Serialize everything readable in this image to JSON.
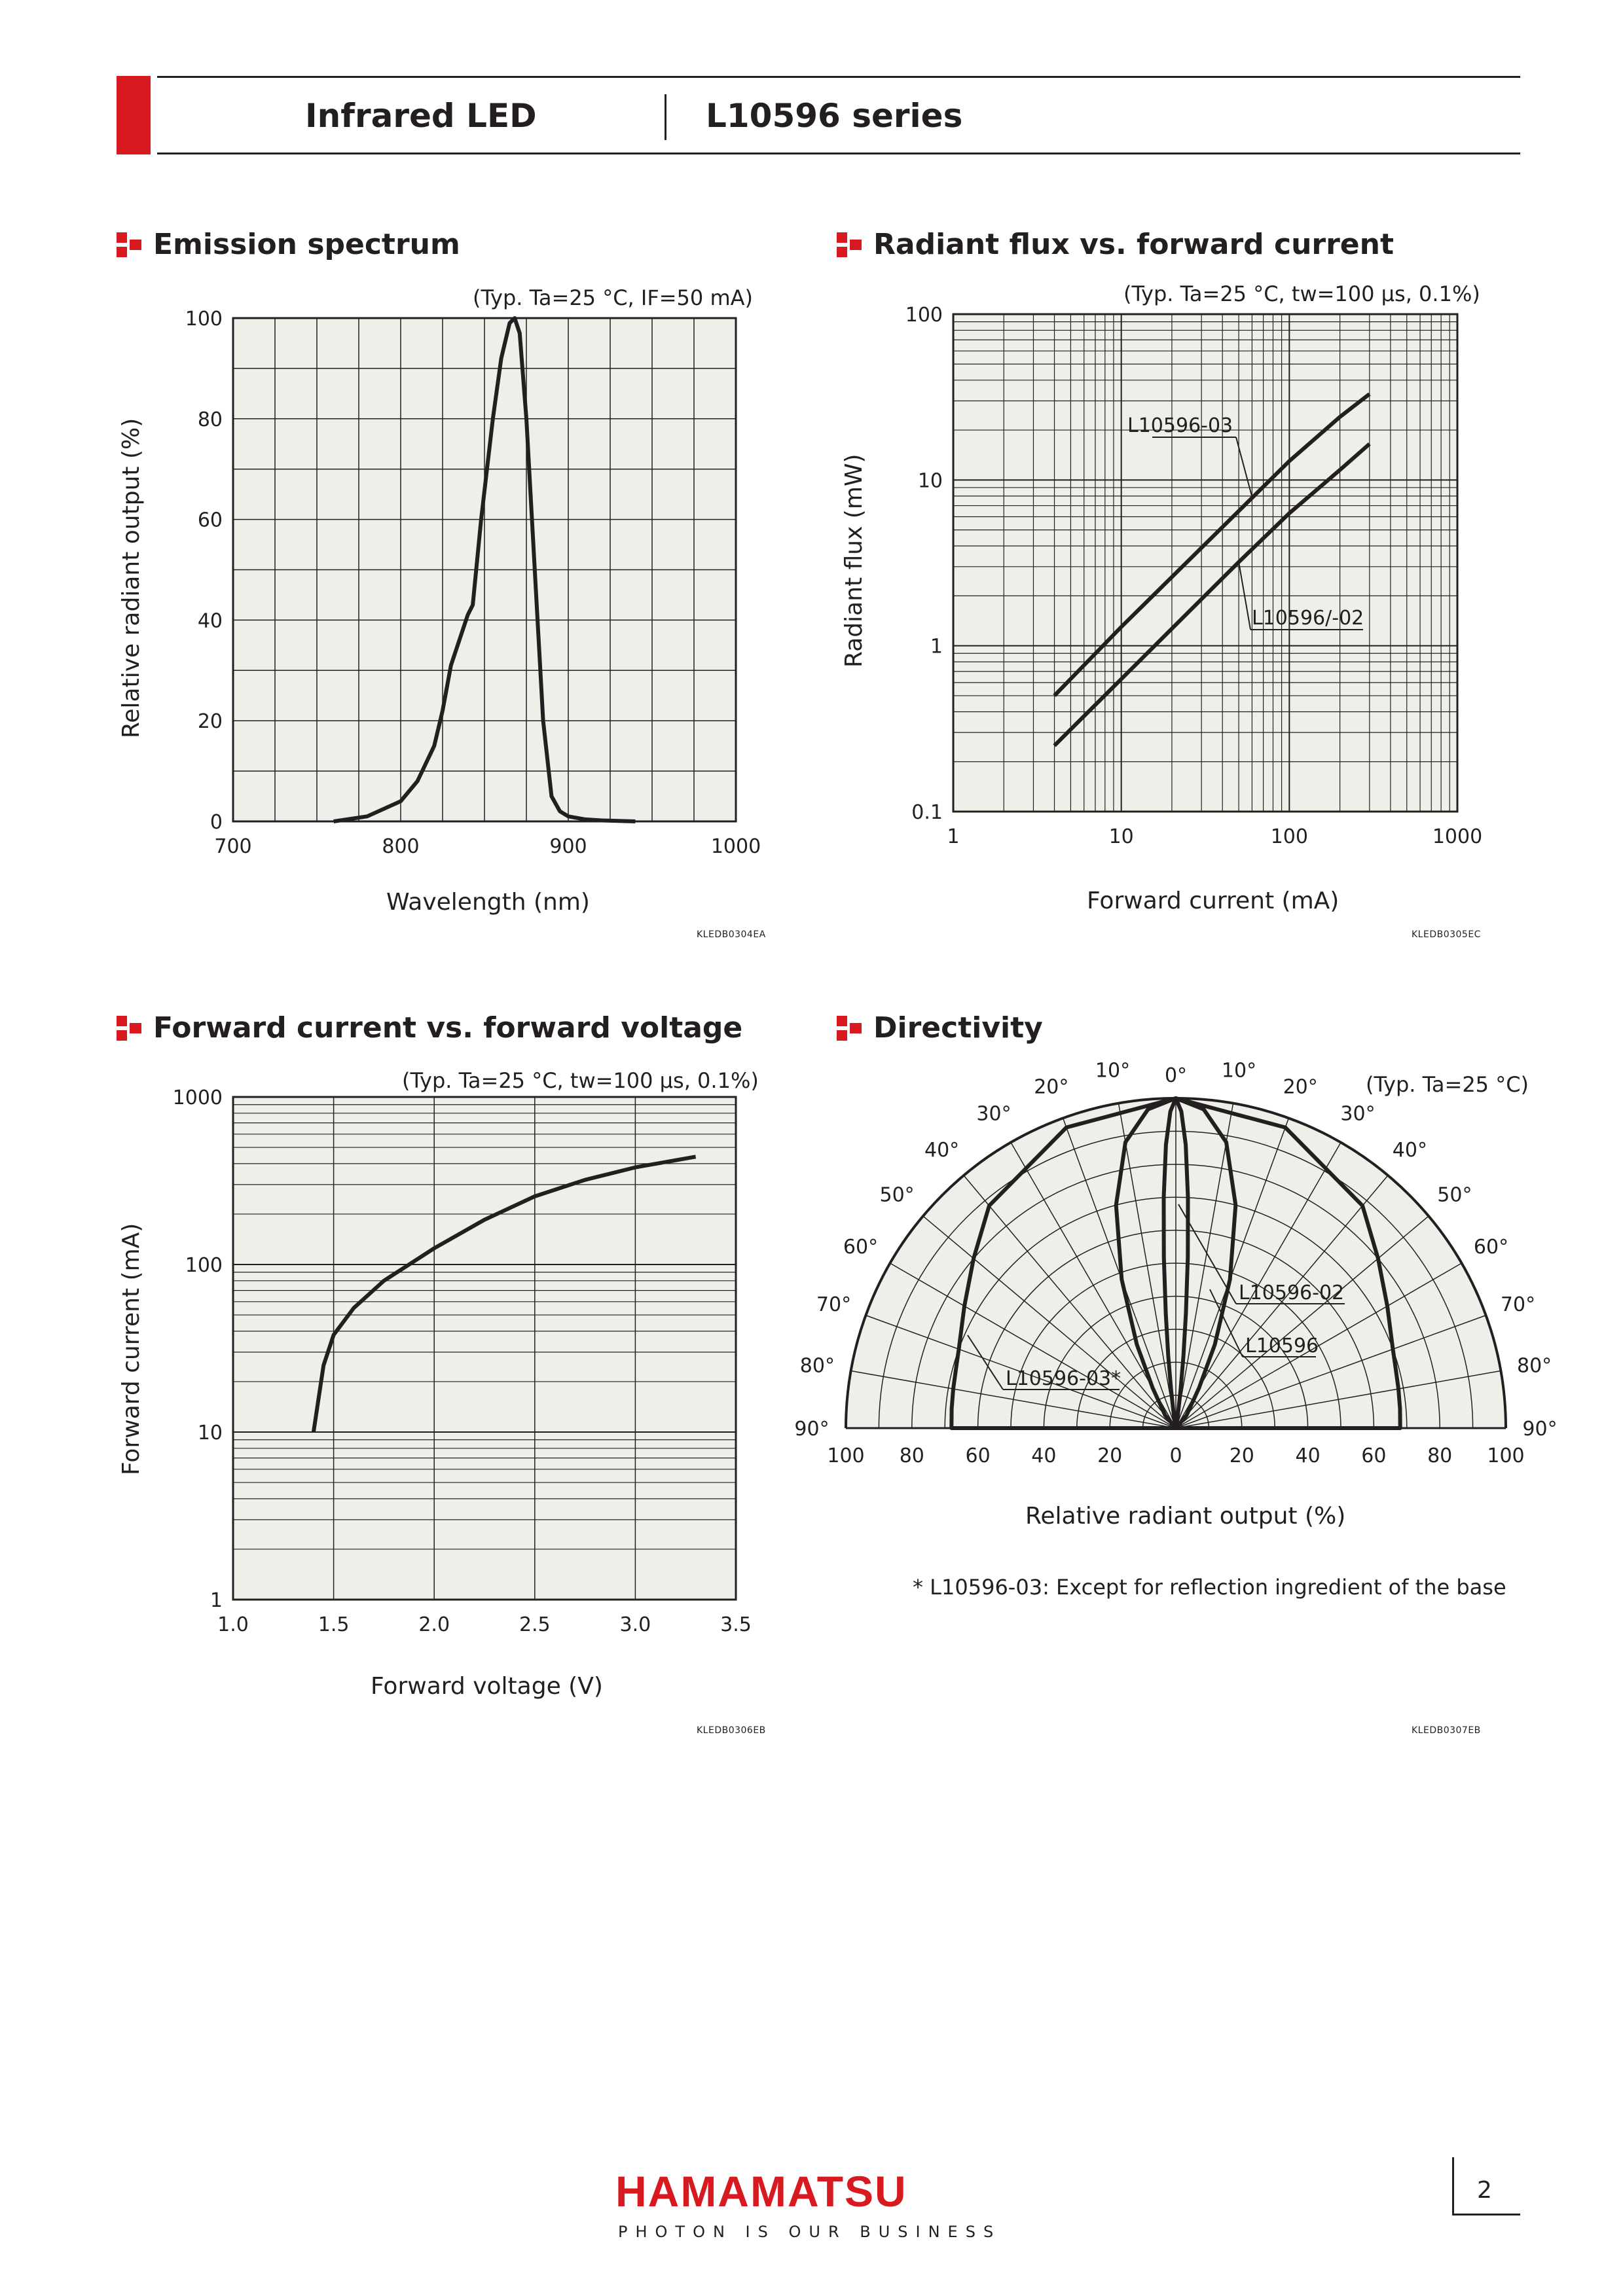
{
  "header": {
    "left_title": "Infrared LED",
    "right_title": "L10596 series"
  },
  "footer": {
    "brand": "HAMAMATSU",
    "tagline": "PHOTON IS OUR BUSINESS",
    "page_number": "2"
  },
  "colors": {
    "brand_red": "#d71920",
    "plot_bg": "#efefe9",
    "ink": "#231f20"
  },
  "sections": {
    "spectrum": {
      "title": "Emission spectrum",
      "condition": "(Typ. Ta=25 °C, IF=50 mA)",
      "code": "KLEDB0304EA"
    },
    "flux": {
      "title": "Radiant flux vs. forward current",
      "condition": "(Typ. Ta=25 °C, tw=100 μs, 0.1%)",
      "code": "KLEDB0305EC"
    },
    "ivcurve": {
      "title": "Forward current vs. forward voltage",
      "condition": "(Typ. Ta=25 °C, tw=100 μs, 0.1%)",
      "code": "KLEDB0306EB"
    },
    "directivity": {
      "title": "Directivity",
      "condition": "(Typ. Ta=25 °C)",
      "code": "KLEDB0307EB",
      "footnote": "* L10596-03: Except for reflection ingredient of the base"
    }
  },
  "chart_data": [
    {
      "type": "line",
      "title": "Emission spectrum",
      "xlabel": "Wavelength (nm)",
      "ylabel": "Relative radiant output (%)",
      "xlim": [
        700,
        1000
      ],
      "ylim": [
        0,
        100
      ],
      "x_ticks": [
        "700",
        "800",
        "900",
        "1000"
      ],
      "y_ticks": [
        "0",
        "20",
        "40",
        "60",
        "80",
        "100"
      ],
      "series": [
        {
          "name": "",
          "x": [
            760,
            780,
            800,
            810,
            820,
            825,
            830,
            840,
            843,
            848,
            855,
            860,
            865,
            868,
            871,
            875,
            880,
            885,
            890,
            895,
            900,
            910,
            920,
            940
          ],
          "values": [
            0,
            1,
            4,
            8,
            15,
            22,
            31,
            41,
            43,
            60,
            80,
            92,
            99,
            100,
            97,
            80,
            50,
            20,
            5,
            2,
            1,
            0.4,
            0.2,
            0
          ]
        }
      ]
    },
    {
      "type": "line",
      "title": "Radiant flux vs. forward current",
      "xlabel": "Forward current (mA)",
      "ylabel": "Radiant flux (mW)",
      "xscale": "log",
      "yscale": "log",
      "xlim": [
        1,
        1000
      ],
      "ylim": [
        0.1,
        100
      ],
      "x_ticks": [
        "1",
        "10",
        "100",
        "1000"
      ],
      "y_ticks": [
        "0.1",
        "1",
        "10",
        "100"
      ],
      "series": [
        {
          "name": "L10596-03",
          "x": [
            4,
            10,
            50,
            100,
            200,
            300
          ],
          "values": [
            0.5,
            1.3,
            6.5,
            13,
            24,
            33
          ]
        },
        {
          "name": "L10596/-02",
          "x": [
            4,
            10,
            50,
            100,
            200,
            300
          ],
          "values": [
            0.25,
            0.63,
            3.2,
            6.3,
            11.5,
            16.5
          ]
        }
      ]
    },
    {
      "type": "line",
      "title": "Forward current vs. forward voltage",
      "xlabel": "Forward voltage (V)",
      "ylabel": "Forward current (mA)",
      "yscale": "log",
      "xlim": [
        1.0,
        3.5
      ],
      "ylim": [
        1,
        1000
      ],
      "x_ticks": [
        "1.0",
        "1.5",
        "2.0",
        "2.5",
        "3.0",
        "3.5"
      ],
      "y_ticks": [
        "1",
        "10",
        "100",
        "1000"
      ],
      "series": [
        {
          "name": "",
          "x": [
            1.4,
            1.45,
            1.5,
            1.6,
            1.75,
            2.0,
            2.25,
            2.5,
            2.75,
            3.0,
            3.3
          ],
          "values": [
            10,
            25,
            38,
            55,
            80,
            125,
            185,
            255,
            320,
            380,
            440
          ]
        }
      ]
    },
    {
      "type": "polar",
      "title": "Directivity",
      "xlabel": "Relative radiant output (%)",
      "rlim": [
        0,
        100
      ],
      "angle_ticks": [
        "0°",
        "10°",
        "20°",
        "30°",
        "40°",
        "50°",
        "60°",
        "70°",
        "80°",
        "90°"
      ],
      "r_ticks": [
        "100",
        "80",
        "60",
        "40",
        "20",
        "0",
        "20",
        "40",
        "60",
        "80",
        "100"
      ],
      "series": [
        {
          "name": "L10596-02",
          "angle_deg": [
            0,
            1,
            2,
            3,
            4,
            5,
            6,
            7,
            8,
            10,
            15
          ],
          "values": [
            100,
            96,
            86,
            70,
            52,
            35,
            22,
            12,
            6,
            2,
            0
          ]
        },
        {
          "name": "L10596",
          "angle_deg": [
            0,
            5,
            10,
            15,
            20,
            25,
            30,
            40,
            60
          ],
          "values": [
            100,
            97,
            88,
            70,
            48,
            28,
            14,
            5,
            0
          ]
        },
        {
          "name": "L10596-03*",
          "angle_deg": [
            0,
            20,
            40,
            50,
            60,
            70,
            75,
            80,
            85,
            90
          ],
          "values": [
            100,
            97,
            88,
            80,
            74,
            70,
            69,
            68.5,
            68.2,
            68
          ]
        }
      ]
    }
  ]
}
